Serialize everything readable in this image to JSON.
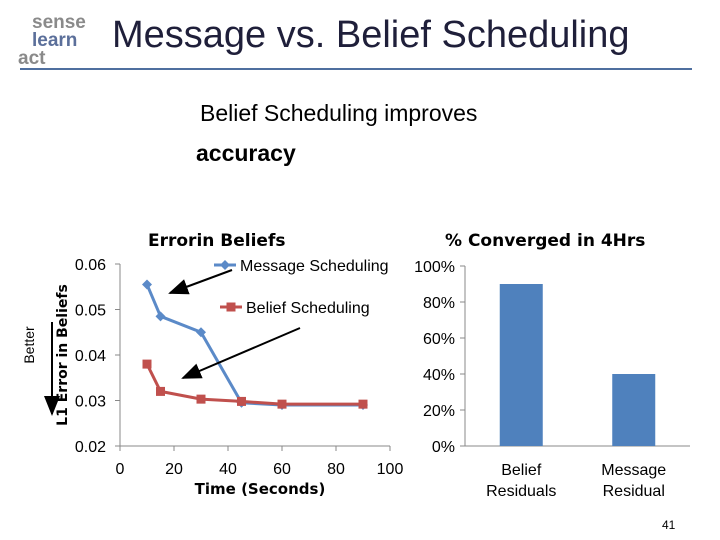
{
  "slide": {
    "logo_words": [
      "sense",
      "learn",
      "act"
    ],
    "title": "Message vs. Belief Scheduling",
    "subtitle_line1": "Belief Scheduling improves",
    "subtitle_line2": "accuracy",
    "page_number": "41",
    "better_label": "Better"
  },
  "chart_data": [
    {
      "type": "line",
      "title": "Errorin Beliefs",
      "xlabel": "Time (Seconds)",
      "ylabel": "L1 Error in Beliefs",
      "xlim": [
        0,
        100
      ],
      "ylim": [
        0.02,
        0.06
      ],
      "xticks": [
        "0",
        "20",
        "40",
        "60",
        "80",
        "100"
      ],
      "yticks": [
        "0.06",
        "0.05",
        "0.04",
        "0.03",
        "0.02"
      ],
      "legend_position": "top-right",
      "series": [
        {
          "name": "Message Scheduling",
          "color": "#5b8ac8",
          "marker": "diamond",
          "points": [
            [
              10,
              0.0555
            ],
            [
              15,
              0.0485
            ],
            [
              30,
              0.045
            ],
            [
              45,
              0.0295
            ],
            [
              60,
              0.029
            ],
            [
              90,
              0.029
            ]
          ]
        },
        {
          "name": "Belief Scheduling",
          "color": "#c0504d",
          "marker": "square",
          "points": [
            [
              10,
              0.038
            ],
            [
              15,
              0.032
            ],
            [
              30,
              0.0303
            ],
            [
              45,
              0.0298
            ],
            [
              60,
              0.0292
            ],
            [
              90,
              0.0292
            ]
          ]
        }
      ]
    },
    {
      "type": "bar",
      "title": "% Converged in 4Hrs",
      "categories": [
        "Belief Residuals",
        "Message Residual"
      ],
      "values": [
        0.9,
        0.4
      ],
      "ylim": [
        0,
        1
      ],
      "yticks": [
        "100%",
        "80%",
        "60%",
        "40%",
        "20%",
        "0%"
      ],
      "color": "#4f81bd"
    }
  ]
}
